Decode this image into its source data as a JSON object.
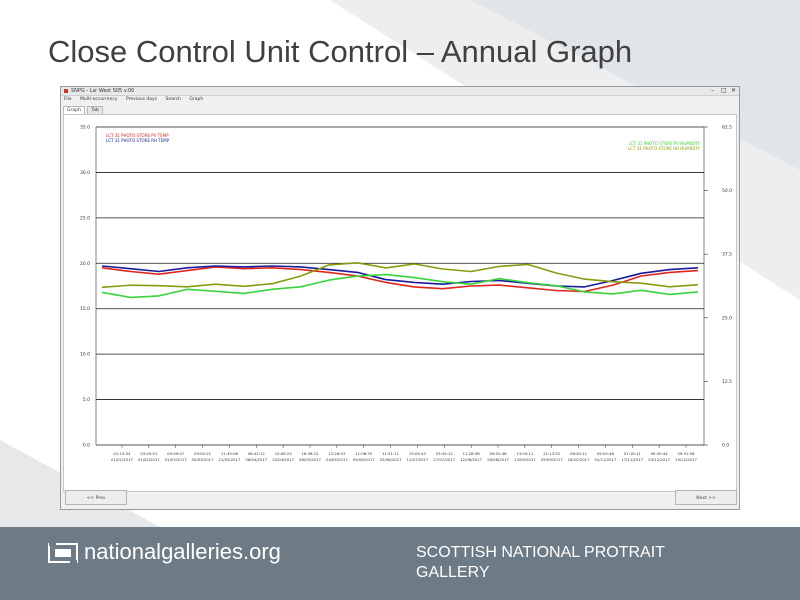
{
  "slide": {
    "title": "Close Control Unit Control – Annual Graph"
  },
  "window": {
    "title": "SNPG - Lsr West S05 v.00",
    "menu": [
      "File",
      "Multi-occurrency",
      "Previous days",
      "Search",
      "Graph"
    ],
    "tabs": [
      "Graph",
      "Tab"
    ],
    "active_tab": "Graph",
    "prev_button": "<< Prev",
    "next_button": "Next >>"
  },
  "chart_data": {
    "type": "line",
    "left_axis": {
      "ticks": [
        "0.0",
        "5.0",
        "10.0",
        "15.0",
        "20.0",
        "25.0",
        "30.0",
        "35.0"
      ],
      "ylim": [
        0,
        35
      ]
    },
    "right_axis": {
      "ticks": [
        "0.0",
        "12.5",
        "25.0",
        "37.5",
        "50.0",
        "62.5"
      ],
      "ylim": [
        0,
        62.5
      ]
    },
    "x_labels": [
      [
        "01:13:54",
        "01/01/2017"
      ],
      [
        "03:45:51",
        "01/02/2017"
      ],
      [
        "05:09:47",
        "01/03/2017"
      ],
      [
        "09:05:21",
        "05/03/2017"
      ],
      [
        "11:45:08",
        "21/03/2017"
      ],
      [
        "08:42:12",
        "06/04/2017"
      ],
      [
        "10:06:23",
        "22/04/2017"
      ],
      [
        "16:36:12",
        "08/05/2017"
      ],
      [
        "12:28:03",
        "24/05/2017"
      ],
      [
        "11:08:33",
        "09/06/2017"
      ],
      [
        "11:51:11",
        "25/06/2017"
      ],
      [
        "13:05:43",
        "11/07/2017"
      ],
      [
        "03:45:12",
        "27/07/2017"
      ],
      [
        "11:28:36",
        "12/08/2017"
      ],
      [
        "09:02:48",
        "28/08/2017"
      ],
      [
        "13:04:11",
        "13/09/2017"
      ],
      [
        "21:13:52",
        "29/09/2017"
      ],
      [
        "08:40:11",
        "16/10/2017"
      ],
      [
        "05:04:46",
        "01/11/2017"
      ],
      [
        "01:18:11",
        "17/11/2017"
      ],
      [
        "06:30:44",
        "03/12/2017"
      ],
      [
        "09:51:56",
        "19/12/2017"
      ]
    ],
    "legend_left": [
      {
        "name": "LCT 31 PHOTO STORE PV TEMP",
        "color": "#e0271f"
      },
      {
        "name": "LCT 31 PHOTO STORE RH TEMP",
        "color": "#1a1a9c"
      }
    ],
    "legend_right": [
      {
        "name": "LCT 31 PHOTO STORE PV HUMIDITY",
        "color": "#3ad43a"
      },
      {
        "name": "LCT 31 PHOTO STORE RH HUMIDITY",
        "color": "#8a9a10"
      }
    ],
    "grid": true,
    "series": [
      {
        "axis": "left",
        "color": "#e0271f",
        "values": [
          19.5,
          19.1,
          18.8,
          19.2,
          19.6,
          19.4,
          19.5,
          19.3,
          19.0,
          18.6,
          17.9,
          17.4,
          17.2,
          17.5,
          17.6,
          17.3,
          17.0,
          16.9,
          17.6,
          18.6,
          19.0,
          19.2
        ]
      },
      {
        "axis": "left",
        "color": "#1a1a9c",
        "values": [
          19.7,
          19.4,
          19.1,
          19.5,
          19.7,
          19.6,
          19.7,
          19.6,
          19.3,
          19.0,
          18.2,
          17.9,
          17.7,
          18.0,
          18.1,
          17.8,
          17.5,
          17.4,
          18.1,
          18.9,
          19.3,
          19.5
        ]
      },
      {
        "axis": "right",
        "color": "#3ad43a",
        "values": [
          30.0,
          29.0,
          29.3,
          30.6,
          30.2,
          29.8,
          30.6,
          31.1,
          32.4,
          33.2,
          33.5,
          32.9,
          32.1,
          31.6,
          32.7,
          31.9,
          31.3,
          30.1,
          29.7,
          30.4,
          29.6,
          30.1
        ]
      },
      {
        "axis": "right",
        "color": "#8a9a10",
        "values": [
          31.0,
          31.4,
          31.3,
          31.1,
          31.6,
          31.2,
          31.7,
          33.2,
          35.4,
          35.8,
          34.8,
          35.6,
          34.6,
          34.1,
          35.1,
          35.5,
          33.8,
          32.6,
          32.1,
          31.8,
          31.1,
          31.5
        ]
      }
    ]
  },
  "footer": {
    "domain": "nationalgalleries.org",
    "gallery": "SCOTTISH NATIONAL PROTRAIT GALLERY"
  }
}
